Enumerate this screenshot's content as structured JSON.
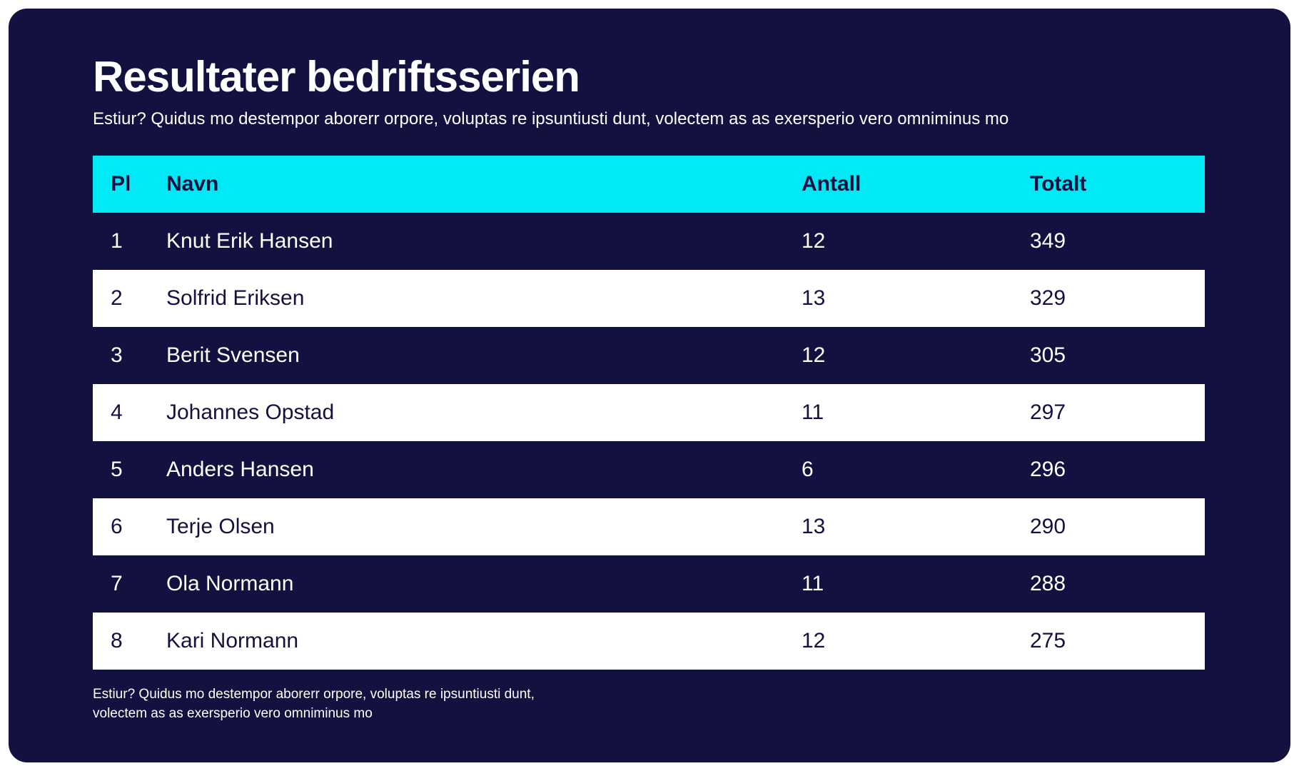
{
  "colors": {
    "page_background": "#ffffff",
    "card_background": "#131140",
    "accent_cyan": "#00eaf6",
    "row_alt_background": "#ffffff",
    "text_on_dark": "#ffffff",
    "text_on_light": "#131140"
  },
  "header": {
    "subtitle": "Estiur? Quidus mo destempor aborerr orpore, voluptas re ipsuntiusti dunt, volectem as as exersperio vero omniminus mo"
  },
  "footnote": {
    "text": "Estiur? Quidus mo destempor aborerr orpore, voluptas re ipsuntiusti dunt, volectem as as exersperio vero omniminus mo"
  },
  "chart_data": {
    "type": "table",
    "title": "Resultater bedriftsserien",
    "columns": [
      "Pl",
      "Navn",
      "Antall",
      "Totalt"
    ],
    "rows": [
      {
        "pl": "1",
        "navn": "Knut Erik Hansen",
        "antall": "12",
        "totalt": "349"
      },
      {
        "pl": "2",
        "navn": "Solfrid Eriksen",
        "antall": "13",
        "totalt": "329"
      },
      {
        "pl": "3",
        "navn": "Berit Svensen",
        "antall": "12",
        "totalt": "305"
      },
      {
        "pl": "4",
        "navn": "Johannes Opstad",
        "antall": "11",
        "totalt": "297"
      },
      {
        "pl": "5",
        "navn": "Anders Hansen",
        "antall": "6",
        "totalt": "296"
      },
      {
        "pl": "6",
        "navn": "Terje Olsen",
        "antall": "13",
        "totalt": "290"
      },
      {
        "pl": "7",
        "navn": "Ola Normann",
        "antall": "11",
        "totalt": "288"
      },
      {
        "pl": "8",
        "navn": "Kari Normann",
        "antall": "12",
        "totalt": "275"
      }
    ],
    "layout": {
      "header_background": "#00eaf6",
      "row_style": "alternating navy/white",
      "columns_align": "left"
    }
  }
}
